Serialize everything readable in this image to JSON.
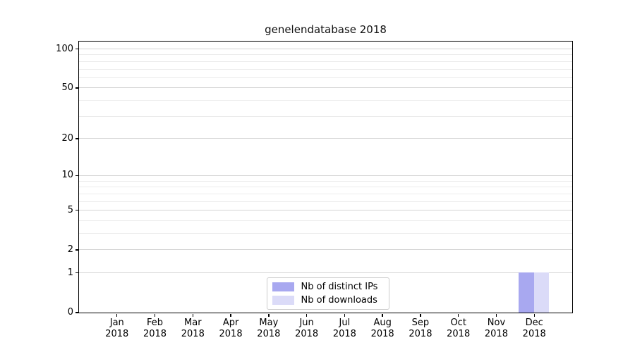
{
  "chart_data": {
    "type": "bar",
    "title": "genelendatabase 2018",
    "x_categories": [
      {
        "month": "Jan",
        "year": "2018"
      },
      {
        "month": "Feb",
        "year": "2018"
      },
      {
        "month": "Mar",
        "year": "2018"
      },
      {
        "month": "Apr",
        "year": "2018"
      },
      {
        "month": "May",
        "year": "2018"
      },
      {
        "month": "Jun",
        "year": "2018"
      },
      {
        "month": "Jul",
        "year": "2018"
      },
      {
        "month": "Aug",
        "year": "2018"
      },
      {
        "month": "Sep",
        "year": "2018"
      },
      {
        "month": "Oct",
        "year": "2018"
      },
      {
        "month": "Nov",
        "year": "2018"
      },
      {
        "month": "Dec",
        "year": "2018"
      }
    ],
    "series": [
      {
        "name": "Nb of distinct IPs",
        "color": "#a8a8f0",
        "values": [
          0,
          0,
          0,
          0,
          0,
          0,
          0,
          0,
          0,
          0,
          0,
          1
        ]
      },
      {
        "name": "Nb of downloads",
        "color": "#dbdbf8",
        "values": [
          0,
          0,
          0,
          0,
          0,
          0,
          0,
          0,
          0,
          0,
          0,
          1
        ]
      }
    ],
    "xlabel": "",
    "ylabel": "",
    "y_scale": "symlog (position proportional to log10(1+value))",
    "ylim": [
      0,
      114
    ],
    "y_major_ticks": [
      0,
      1,
      2,
      5,
      10,
      20,
      50,
      100
    ],
    "y_tick_labels": [
      "0",
      "1",
      "2",
      "5",
      "10",
      "20",
      "50",
      "100"
    ],
    "y_minor_gridlines": [
      3,
      4,
      6,
      7,
      8,
      9,
      30,
      40,
      60,
      70,
      80,
      90
    ],
    "grid": true,
    "legend": {
      "position": "lower center",
      "entries": [
        "Nb of distinct IPs",
        "Nb of downloads"
      ]
    },
    "colors": {
      "bar_distinct_ips": "#a8a8f0",
      "bar_downloads": "#dbdbf8",
      "grid_major": "#d4d4d4",
      "grid_minor": "#ebebeb",
      "axis": "#000000",
      "text": "#000000",
      "background": "#ffffff"
    }
  }
}
